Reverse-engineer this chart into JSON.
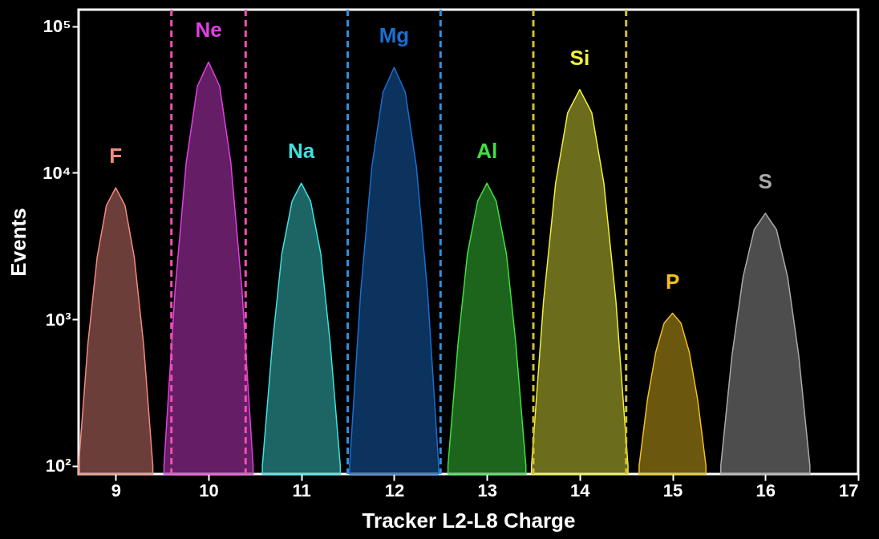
{
  "chart_data": {
    "type": "area",
    "xlabel": "Tracker L2-L8 Charge",
    "ylabel": "Events",
    "log": "y",
    "xlim": [
      8.6,
      17
    ],
    "xticks": [
      9,
      10,
      11,
      12,
      13,
      14,
      15,
      16,
      17
    ],
    "ylim": [
      88,
      130000
    ],
    "yticks": [
      {
        "value": 100,
        "label": "10²"
      },
      {
        "value": 1000,
        "label": "10³"
      },
      {
        "value": 10000,
        "label": "10⁴"
      },
      {
        "value": 100000,
        "label": "10⁵"
      }
    ],
    "grid": false,
    "line_style": "solid",
    "series": [
      {
        "name": "F",
        "color": "#f08a80",
        "x": [
          8.6,
          8.7,
          8.8,
          8.9,
          9.0,
          9.1,
          9.2,
          9.3,
          9.4
        ],
        "values": [
          100,
          680,
          2660,
          6000,
          7900,
          6000,
          2660,
          680,
          100
        ]
      },
      {
        "name": "Ne",
        "color": "#e040e0",
        "x": [
          9.52,
          9.64,
          9.76,
          9.88,
          10.0,
          10.12,
          10.24,
          10.36,
          10.48
        ],
        "values": [
          100,
          1600,
          11800,
          39000,
          57000,
          39000,
          11800,
          1600,
          100
        ]
      },
      {
        "name": "Na",
        "color": "#40e0e0",
        "x": [
          10.58,
          10.69,
          10.79,
          10.9,
          11.0,
          11.1,
          11.21,
          11.31,
          11.42
        ],
        "values": [
          100,
          700,
          2800,
          6400,
          8500,
          6400,
          2800,
          700,
          100
        ]
      },
      {
        "name": "Mg",
        "color": "#1a6fd0",
        "x": [
          11.52,
          11.64,
          11.76,
          11.88,
          12.0,
          12.12,
          12.24,
          12.36,
          12.48
        ],
        "values": [
          100,
          1550,
          11000,
          35500,
          52500,
          35500,
          11000,
          1550,
          100
        ]
      },
      {
        "name": "Al",
        "color": "#40e040",
        "x": [
          12.58,
          12.69,
          12.79,
          12.9,
          13.0,
          13.1,
          13.21,
          13.31,
          13.42
        ],
        "values": [
          100,
          700,
          2800,
          6400,
          8500,
          6400,
          2800,
          700,
          100
        ]
      },
      {
        "name": "Si",
        "color": "#f0f040",
        "x": [
          13.48,
          13.61,
          13.74,
          13.87,
          14.0,
          14.13,
          14.26,
          14.39,
          14.52
        ],
        "values": [
          100,
          1330,
          8500,
          25700,
          37000,
          25700,
          8500,
          1330,
          100
        ]
      },
      {
        "name": "P",
        "color": "#f0c020",
        "x": [
          14.64,
          14.73,
          14.82,
          14.91,
          15.0,
          15.09,
          15.18,
          15.27,
          15.36
        ],
        "values": [
          100,
          285,
          600,
          945,
          1100,
          945,
          600,
          285,
          100
        ]
      },
      {
        "name": "S",
        "color": "#aaaaaa",
        "x": [
          15.52,
          15.64,
          15.76,
          15.88,
          16.0,
          16.12,
          16.24,
          16.36,
          16.48
        ],
        "values": [
          100,
          565,
          1950,
          4100,
          5300,
          4100,
          1950,
          565,
          100
        ]
      }
    ],
    "ref_lines": [
      {
        "axis": "x",
        "value": 9.6,
        "color": "#f050b0",
        "line_style": "dashed"
      },
      {
        "axis": "x",
        "value": 10.4,
        "color": "#f050b0",
        "line_style": "dashed"
      },
      {
        "axis": "x",
        "value": 11.5,
        "color": "#3090e0",
        "line_style": "dashed"
      },
      {
        "axis": "x",
        "value": 12.5,
        "color": "#3090e0",
        "line_style": "dashed"
      },
      {
        "axis": "x",
        "value": 13.5,
        "color": "#d0c030",
        "line_style": "dashed"
      },
      {
        "axis": "x",
        "value": 14.5,
        "color": "#d0c030",
        "line_style": "dashed"
      }
    ]
  }
}
